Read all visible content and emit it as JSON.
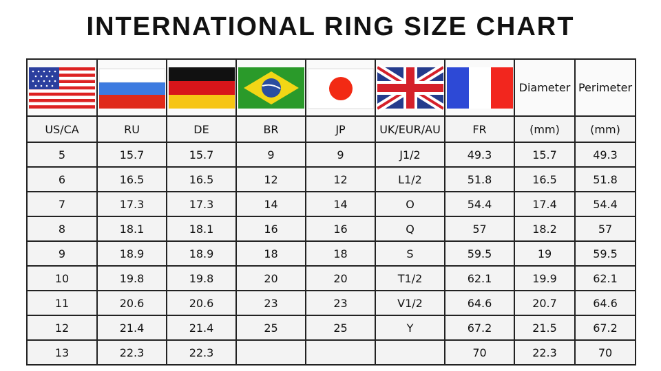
{
  "title": "INTERNATIONAL RING SIZE CHART",
  "flags": [
    {
      "icon": "us-flag-icon",
      "column": "US/CA"
    },
    {
      "icon": "russia-flag-icon",
      "column": "RU"
    },
    {
      "icon": "germany-flag-icon",
      "column": "DE"
    },
    {
      "icon": "brazil-flag-icon",
      "column": "BR"
    },
    {
      "icon": "japan-flag-icon",
      "column": "JP"
    },
    {
      "icon": "uk-flag-icon",
      "column": "UK/EUR/AU"
    },
    {
      "icon": "france-flag-icon",
      "column": "FR"
    }
  ],
  "top_labels": [
    "Diameter",
    "Perimeter"
  ],
  "chart_data": {
    "type": "table",
    "title": "INTERNATIONAL RING SIZE CHART",
    "columns": [
      "US/CA",
      "RU",
      "DE",
      "BR",
      "JP",
      "UK/EUR/AU",
      "FR",
      "(mm)",
      "(mm)"
    ],
    "rows": [
      [
        "5",
        "15.7",
        "15.7",
        "9",
        "9",
        "J1/2",
        "49.3",
        "15.7",
        "49.3"
      ],
      [
        "6",
        "16.5",
        "16.5",
        "12",
        "12",
        "L1/2",
        "51.8",
        "16.5",
        "51.8"
      ],
      [
        "7",
        "17.3",
        "17.3",
        "14",
        "14",
        "O",
        "54.4",
        "17.4",
        "54.4"
      ],
      [
        "8",
        "18.1",
        "18.1",
        "16",
        "16",
        "Q",
        "57",
        "18.2",
        "57"
      ],
      [
        "9",
        "18.9",
        "18.9",
        "18",
        "18",
        "S",
        "59.5",
        "19",
        "59.5"
      ],
      [
        "10",
        "19.8",
        "19.8",
        "20",
        "20",
        "T1/2",
        "62.1",
        "19.9",
        "62.1"
      ],
      [
        "11",
        "20.6",
        "20.6",
        "23",
        "23",
        "V1/2",
        "64.6",
        "20.7",
        "64.6"
      ],
      [
        "12",
        "21.4",
        "21.4",
        "25",
        "25",
        "Y",
        "67.2",
        "21.5",
        "67.2"
      ],
      [
        "13",
        "22.3",
        "22.3",
        "",
        "",
        "",
        "70",
        "22.3",
        "70"
      ]
    ]
  }
}
